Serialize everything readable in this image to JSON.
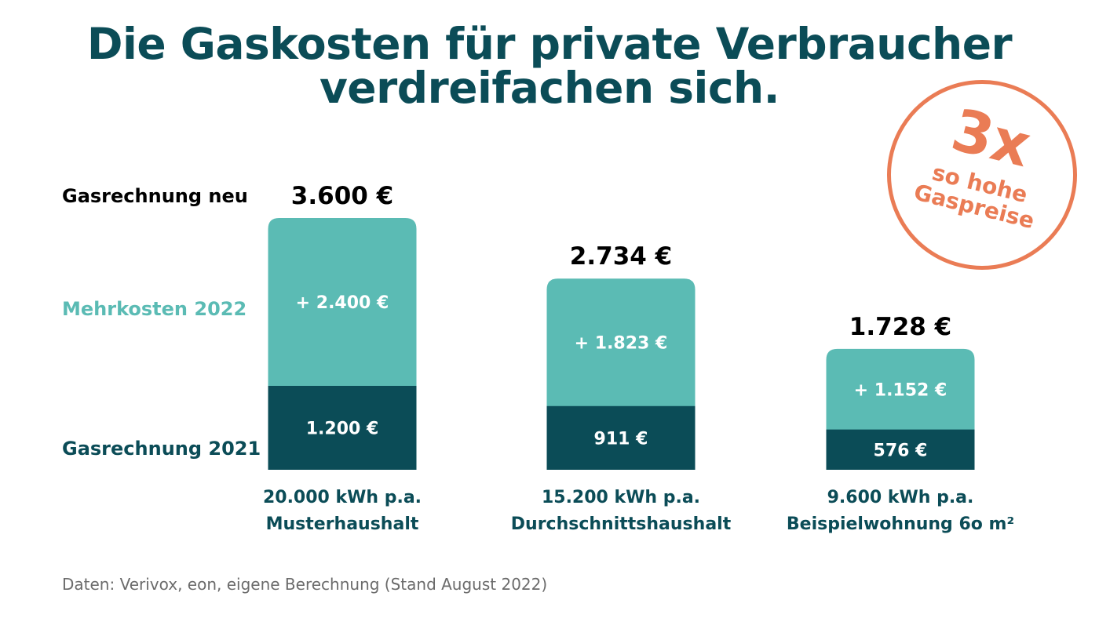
{
  "title": {
    "line1": "Die Gaskosten für private Verbraucher",
    "line2": "verdreifachen sich."
  },
  "row_labels": {
    "new_bill": "Gasrechnung neu",
    "extra": "Mehrkosten 2022",
    "bill_2021": "Gasrechnung 2021"
  },
  "badge": {
    "big": "3x",
    "line2": "so hohe",
    "line3": "Gaspreise",
    "color": "#ea7c55"
  },
  "source": "Daten: Verivox, eon, eigene Berechnung (Stand August 2022)",
  "colors": {
    "title": "#0b4c57",
    "bill_2021": "#0b4c57",
    "extra": "#5bbbb4",
    "total_label": "#000000"
  },
  "chart_data": {
    "type": "bar",
    "stacked": true,
    "categories": [
      {
        "line1": "20.000 kWh p.a.",
        "line2": "Musterhaushalt"
      },
      {
        "line1": "15.200 kWh p.a.",
        "line2": "Durchschnittshaushalt"
      },
      {
        "line1": "9.600 kWh p.a.",
        "line2": "Beispielwohnung 6o m²"
      }
    ],
    "series": [
      {
        "name": "Gasrechnung 2021",
        "values": [
          1200,
          911,
          576
        ],
        "labels": [
          "1.200 €",
          "911 €",
          "576 €"
        ]
      },
      {
        "name": "Mehrkosten 2022",
        "values": [
          2400,
          1823,
          1152
        ],
        "labels": [
          "+ 2.400 €",
          "+ 1.823 €",
          "+ 1.152 €"
        ]
      }
    ],
    "totals": {
      "values": [
        3600,
        2734,
        1728
      ],
      "labels": [
        "3.600 €",
        "2.734 €",
        "1.728 €"
      ]
    },
    "ylim": [
      0,
      3600
    ]
  }
}
